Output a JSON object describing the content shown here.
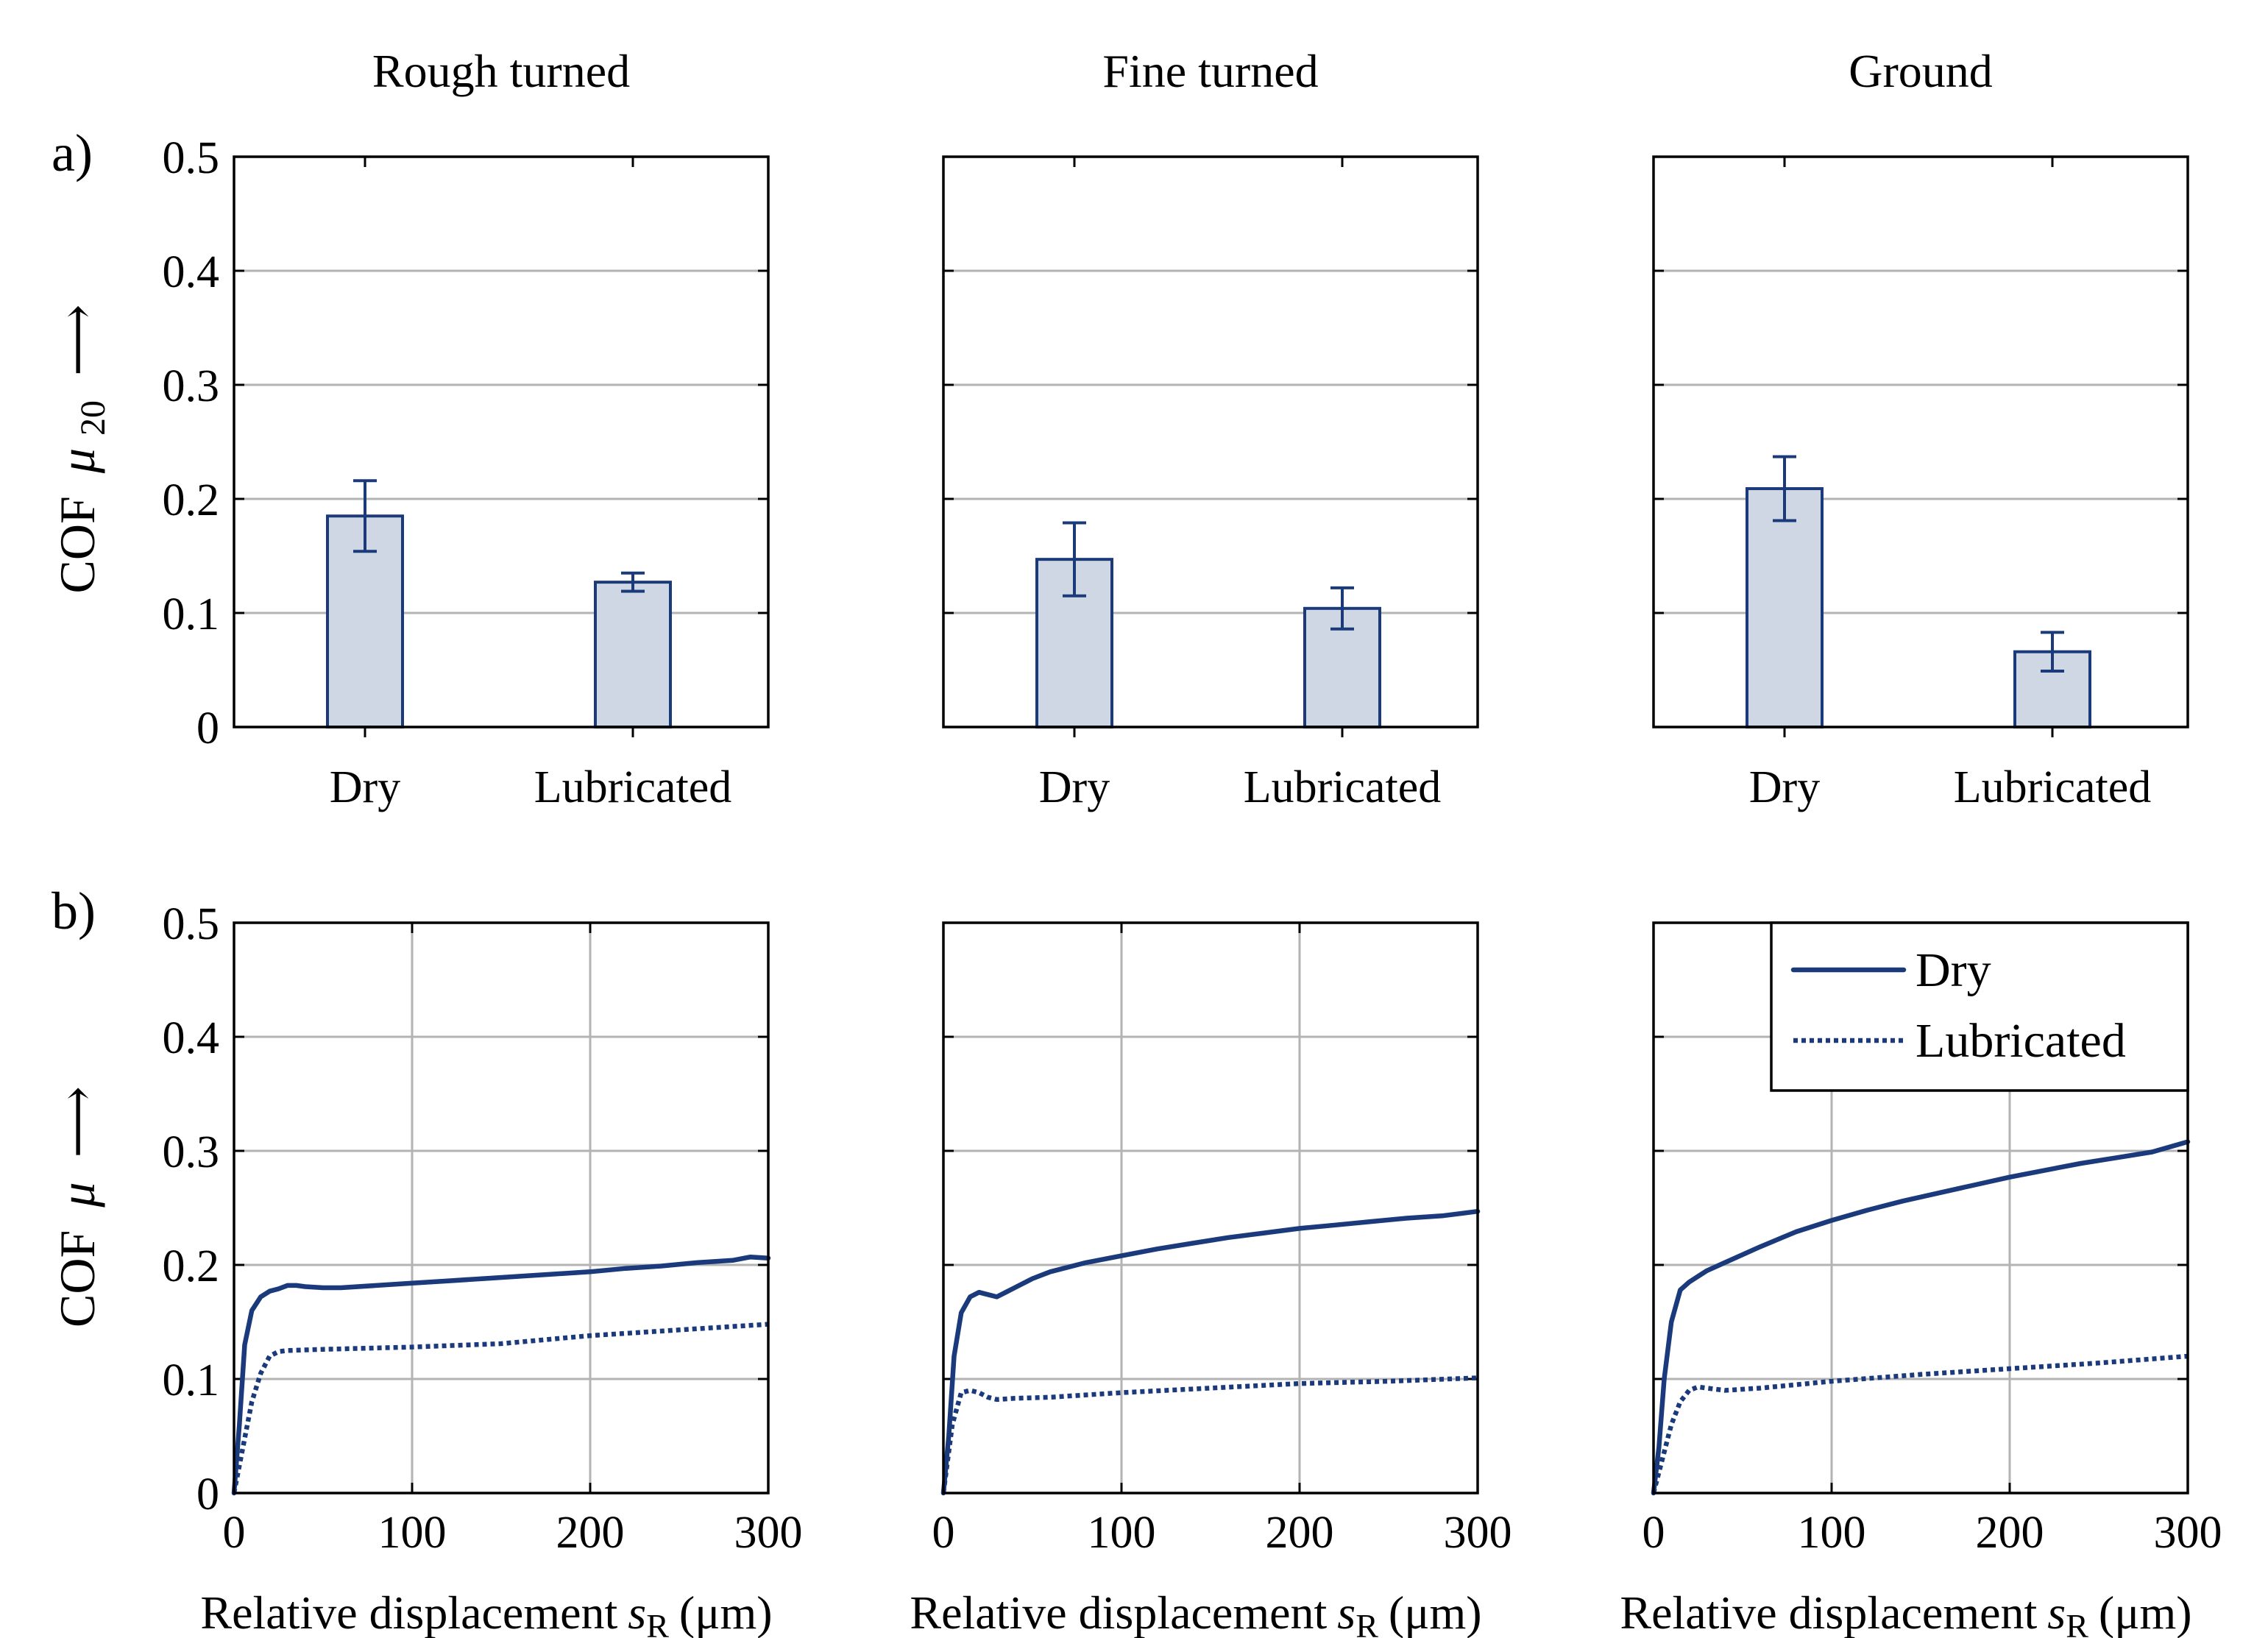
{
  "figure": {
    "colors": {
      "series": "#1b3a7c",
      "bar_fill": "#cfd7e4",
      "grid": "#b3b3b3"
    },
    "row_a_label": "a)",
    "row_b_label": "b)",
    "ylabel_a_prefix": "COF",
    "ylabel_a_symbol": "μ",
    "ylabel_a_sub": "20",
    "ylabel_b_prefix": "COF",
    "ylabel_b_symbol": "μ",
    "ylabel_arrow": "⟶",
    "xlabel_prefix": "Relative displacement",
    "xlabel_symbol": "s",
    "xlabel_sub": "R",
    "xlabel_unit": "(μm)",
    "legend": {
      "dry": "Dry",
      "lubricated": "Lubricated"
    }
  },
  "chart_data": [
    {
      "type": "bar",
      "title": "Rough turned",
      "categories": [
        "Dry",
        "Lubricated"
      ],
      "values": [
        0.185,
        0.127
      ],
      "errors": [
        0.031,
        0.008
      ],
      "ylim": [
        0,
        0.5
      ],
      "yticks": [
        "0",
        "0.1",
        "0.2",
        "0.3",
        "0.4",
        "0.5"
      ]
    },
    {
      "type": "bar",
      "title": "Fine turned",
      "categories": [
        "Dry",
        "Lubricated"
      ],
      "values": [
        0.147,
        0.104
      ],
      "errors": [
        0.032,
        0.018
      ],
      "ylim": [
        0,
        0.5
      ],
      "yticks": [
        "0",
        "0.1",
        "0.2",
        "0.3",
        "0.4",
        "0.5"
      ]
    },
    {
      "type": "bar",
      "title": "Ground",
      "categories": [
        "Dry",
        "Lubricated"
      ],
      "values": [
        0.209,
        0.066
      ],
      "errors": [
        0.028,
        0.017
      ],
      "ylim": [
        0,
        0.5
      ],
      "yticks": [
        "0",
        "0.1",
        "0.2",
        "0.3",
        "0.4",
        "0.5"
      ]
    },
    {
      "type": "line",
      "xlim": [
        0,
        300
      ],
      "ylim": [
        0,
        0.5
      ],
      "xticks": [
        "0",
        "100",
        "200",
        "300"
      ],
      "yticks": [
        "0",
        "0.1",
        "0.2",
        "0.3",
        "0.4",
        "0.5"
      ],
      "series": [
        {
          "name": "Dry",
          "x": [
            0,
            3,
            6,
            10,
            15,
            20,
            25,
            30,
            35,
            40,
            50,
            60,
            80,
            100,
            120,
            140,
            160,
            180,
            200,
            220,
            240,
            260,
            280,
            290,
            300
          ],
          "y": [
            0.0,
            0.06,
            0.13,
            0.16,
            0.172,
            0.177,
            0.179,
            0.182,
            0.182,
            0.181,
            0.18,
            0.18,
            0.182,
            0.184,
            0.186,
            0.188,
            0.19,
            0.192,
            0.194,
            0.197,
            0.199,
            0.202,
            0.204,
            0.207,
            0.206
          ]
        },
        {
          "name": "Lubricated",
          "x": [
            0,
            5,
            10,
            15,
            20,
            25,
            30,
            50,
            100,
            150,
            200,
            250,
            300
          ],
          "y": [
            0.0,
            0.04,
            0.08,
            0.105,
            0.12,
            0.124,
            0.125,
            0.126,
            0.128,
            0.131,
            0.138,
            0.143,
            0.148
          ]
        }
      ]
    },
    {
      "type": "line",
      "xlim": [
        0,
        300
      ],
      "ylim": [
        0,
        0.5
      ],
      "xticks": [
        "0",
        "100",
        "200",
        "300"
      ],
      "yticks": [
        "0",
        "0.1",
        "0.2",
        "0.3",
        "0.4",
        "0.5"
      ],
      "series": [
        {
          "name": "Dry",
          "x": [
            0,
            3,
            6,
            10,
            15,
            20,
            25,
            30,
            35,
            40,
            50,
            60,
            80,
            100,
            120,
            140,
            160,
            180,
            200,
            220,
            240,
            260,
            280,
            300
          ],
          "y": [
            0.0,
            0.05,
            0.12,
            0.158,
            0.172,
            0.176,
            0.174,
            0.172,
            0.176,
            0.18,
            0.188,
            0.194,
            0.202,
            0.208,
            0.214,
            0.219,
            0.224,
            0.228,
            0.232,
            0.235,
            0.238,
            0.241,
            0.243,
            0.247
          ]
        },
        {
          "name": "Lubricated",
          "x": [
            0,
            5,
            10,
            15,
            20,
            25,
            30,
            40,
            60,
            100,
            150,
            200,
            250,
            300
          ],
          "y": [
            0.0,
            0.06,
            0.088,
            0.09,
            0.088,
            0.084,
            0.082,
            0.083,
            0.084,
            0.088,
            0.092,
            0.096,
            0.098,
            0.101
          ]
        }
      ]
    },
    {
      "type": "line",
      "xlim": [
        0,
        300
      ],
      "ylim": [
        0,
        0.5
      ],
      "xticks": [
        "0",
        "100",
        "200",
        "300"
      ],
      "yticks": [
        "0",
        "0.1",
        "0.2",
        "0.3",
        "0.4",
        "0.5"
      ],
      "legend_position": "top-right",
      "series": [
        {
          "name": "Dry",
          "x": [
            0,
            3,
            6,
            10,
            15,
            20,
            25,
            30,
            40,
            60,
            80,
            100,
            120,
            140,
            160,
            180,
            200,
            220,
            240,
            260,
            280,
            300
          ],
          "y": [
            0.0,
            0.04,
            0.1,
            0.15,
            0.178,
            0.185,
            0.19,
            0.195,
            0.202,
            0.216,
            0.229,
            0.239,
            0.248,
            0.256,
            0.263,
            0.27,
            0.277,
            0.283,
            0.289,
            0.294,
            0.299,
            0.308
          ]
        },
        {
          "name": "Lubricated",
          "x": [
            0,
            5,
            10,
            15,
            20,
            25,
            30,
            40,
            60,
            100,
            150,
            200,
            250,
            300
          ],
          "y": [
            0.0,
            0.03,
            0.06,
            0.08,
            0.09,
            0.093,
            0.092,
            0.09,
            0.092,
            0.098,
            0.104,
            0.109,
            0.114,
            0.12
          ]
        }
      ]
    }
  ]
}
